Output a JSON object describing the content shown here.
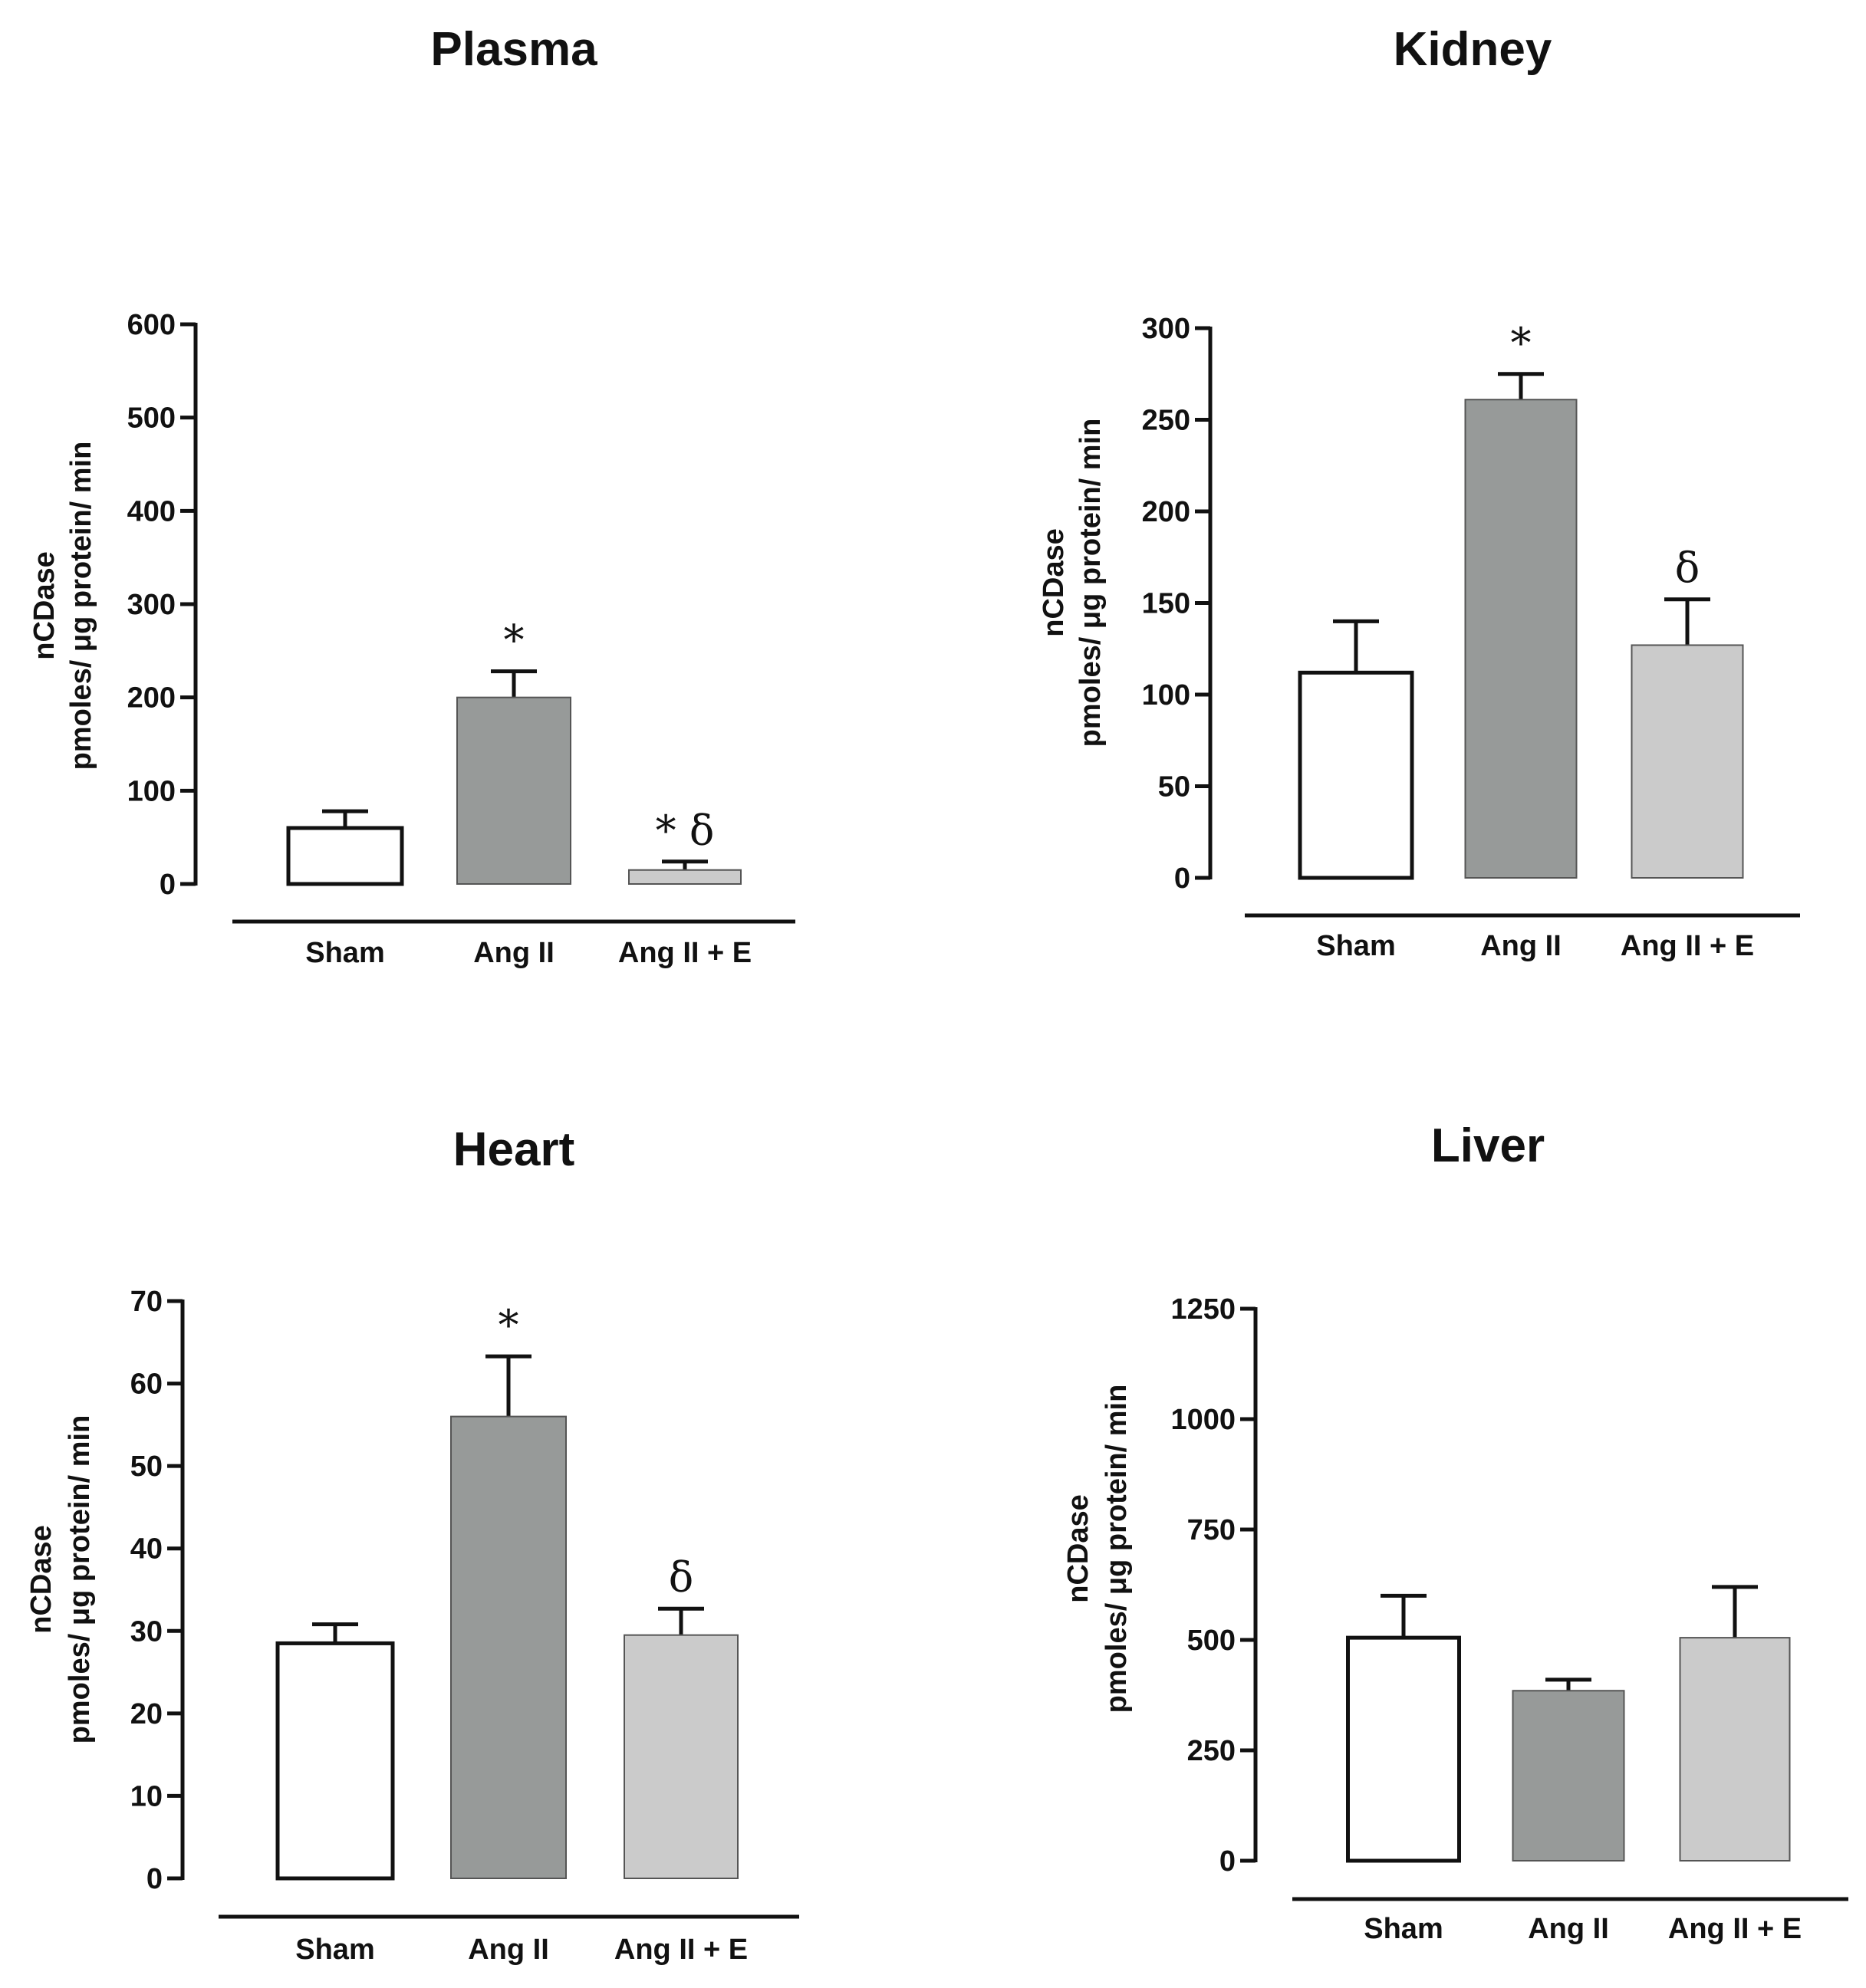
{
  "chart_data": [
    {
      "type": "bar",
      "title": "Plasma",
      "ylabel": [
        "nCDase",
        "pmoles/ μg protein/ min"
      ],
      "xlabel": "",
      "categories": [
        "Sham",
        "Ang II",
        "Ang II + E"
      ],
      "values": [
        60,
        200,
        15
      ],
      "errors": [
        18,
        28,
        9
      ],
      "significance": [
        "",
        "*",
        "* δ"
      ],
      "yticks": [
        0,
        100,
        200,
        300,
        400,
        500,
        600
      ],
      "ylim": [
        0,
        600
      ],
      "colors": [
        "#ffffff",
        "#979a99",
        "#cbcbcb"
      ]
    },
    {
      "type": "bar",
      "title": "Kidney",
      "ylabel": [
        "nCDase",
        "pmoles/ μg protein/ min"
      ],
      "xlabel": "",
      "categories": [
        "Sham",
        "Ang II",
        "Ang II + E"
      ],
      "values": [
        112,
        261,
        127
      ],
      "errors": [
        28,
        14,
        25
      ],
      "significance": [
        "",
        "*",
        "δ"
      ],
      "yticks": [
        0,
        50,
        100,
        150,
        200,
        250,
        300
      ],
      "ylim": [
        0,
        300
      ],
      "colors": [
        "#ffffff",
        "#979a99",
        "#cbcbcb"
      ]
    },
    {
      "type": "bar",
      "title": "Heart",
      "ylabel": [
        "nCDase",
        "pmoles/ μg protein/ min"
      ],
      "xlabel": "",
      "categories": [
        "Sham",
        "Ang II",
        "Ang II + E"
      ],
      "values": [
        28.5,
        56,
        29.5
      ],
      "errors": [
        2.3,
        7.3,
        3.2
      ],
      "significance": [
        "",
        "*",
        "δ"
      ],
      "yticks": [
        0,
        10,
        20,
        30,
        40,
        50,
        60,
        70
      ],
      "ylim": [
        0,
        70
      ],
      "colors": [
        "#ffffff",
        "#979a99",
        "#cbcbcb"
      ]
    },
    {
      "type": "bar",
      "title": "Liver",
      "ylabel": [
        "nCDase",
        "pmoles/ μg protein/ min"
      ],
      "xlabel": "",
      "categories": [
        "Sham",
        "Ang II",
        "Ang II + E"
      ],
      "values": [
        505,
        385,
        505
      ],
      "errors": [
        95,
        25,
        115
      ],
      "significance": [
        "",
        "",
        ""
      ],
      "yticks": [
        0,
        250,
        500,
        750,
        1000,
        1250
      ],
      "ylim": [
        0,
        1250
      ],
      "colors": [
        "#ffffff",
        "#979a99",
        "#cbcbcb"
      ]
    }
  ]
}
